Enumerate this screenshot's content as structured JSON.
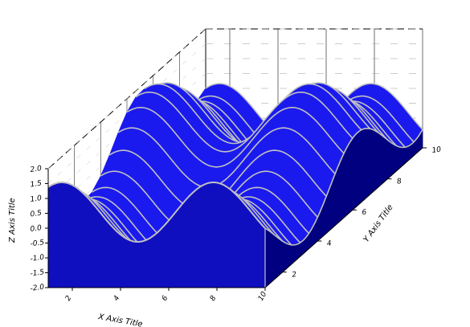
{
  "chart_data": {
    "type": "surface3d",
    "title": "",
    "xlabel": "X Axis Title",
    "ylabel": "Y Axis Title",
    "zlabel": "Z Axis Title",
    "x_ticks": [
      2,
      4,
      6,
      8,
      10
    ],
    "y_ticks": [
      2,
      4,
      6,
      8,
      10
    ],
    "z_ticks": [
      2.0,
      1.5,
      1.0,
      0.5,
      0.0,
      -0.5,
      -1.0,
      -1.5,
      -2.0
    ],
    "x_tick_labels": [
      "2",
      "4",
      "6",
      "8",
      "10"
    ],
    "y_tick_labels": [
      "2",
      "4",
      "6",
      "8",
      "10"
    ],
    "z_tick_labels": [
      "2.0",
      "1.5",
      "1.0",
      "0.5",
      "0.0",
      "-0.5",
      "-1.0",
      "-1.5",
      "-2.0"
    ],
    "xlim": [
      1,
      10
    ],
    "ylim": [
      1,
      10
    ],
    "zlim": [
      -2.0,
      2.0
    ],
    "y_rows": [
      1.0,
      1.5,
      2.0,
      2.5,
      3.0,
      3.5,
      4.0,
      4.5,
      5.0,
      5.5,
      6.0,
      6.5,
      7.0,
      7.5,
      8.0,
      8.5,
      9.0,
      9.5,
      10.0
    ],
    "surface_formula": "z = sin(x) + cos(y)",
    "grid": true,
    "colors": {
      "surface": "#1a1aee",
      "front_face": "#0f0fc0",
      "side_face": "#000080",
      "mesh": "#c0c0c0",
      "back_wall": "#000000"
    }
  }
}
